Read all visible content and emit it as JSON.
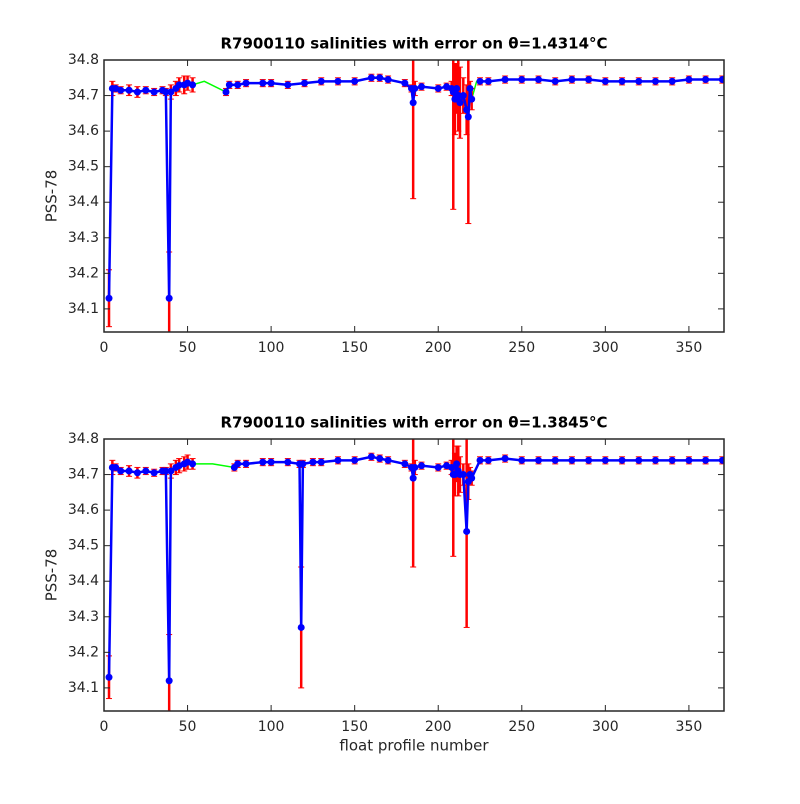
{
  "chart_data": [
    {
      "type": "line",
      "title": "R7900110 salinities with error on θ=1.4314°C",
      "ylabel": "PSS-78",
      "xlim": [
        0,
        371
      ],
      "ylim": [
        34.035,
        34.8
      ],
      "xticks": [
        0,
        50,
        100,
        150,
        200,
        250,
        300,
        350
      ],
      "yticks": [
        34.1,
        34.2,
        34.3,
        34.4,
        34.5,
        34.6,
        34.7,
        34.8
      ],
      "x": [
        3,
        5,
        7,
        10,
        15,
        20,
        25,
        30,
        35,
        37,
        39,
        40,
        43,
        45,
        48,
        50,
        53,
        60,
        73,
        75,
        80,
        85,
        95,
        100,
        110,
        120,
        130,
        140,
        150,
        160,
        165,
        170,
        180,
        184,
        185,
        186,
        190,
        200,
        205,
        208,
        209,
        210,
        211,
        212,
        213,
        215,
        217,
        218,
        219,
        220,
        223,
        225,
        230,
        240,
        250,
        260,
        270,
        280,
        290,
        300,
        310,
        320,
        330,
        340,
        350,
        360,
        370
      ],
      "series": [
        {
          "color": "#00ff00",
          "values": [
            34.13,
            34.72,
            34.72,
            34.715,
            34.715,
            34.71,
            34.715,
            34.71,
            34.715,
            34.71,
            34.13,
            34.71,
            34.72,
            34.73,
            34.73,
            34.735,
            34.73,
            34.74,
            34.71,
            34.73,
            34.73,
            34.735,
            34.735,
            34.735,
            34.73,
            34.735,
            34.74,
            34.74,
            34.74,
            34.75,
            34.75,
            34.745,
            34.735,
            34.72,
            34.68,
            34.72,
            34.725,
            34.72,
            34.725,
            34.72,
            34.71,
            34.69,
            34.72,
            34.7,
            34.68,
            34.7,
            34.66,
            34.64,
            34.72,
            34.69,
            34.74,
            34.74,
            34.74,
            34.745,
            34.745,
            34.745,
            34.74,
            34.745,
            34.745,
            34.74,
            34.74,
            34.74,
            34.74,
            34.74,
            34.745,
            34.745,
            34.745
          ]
        },
        {
          "color": "#0000ff",
          "error_color": "#ff0000",
          "values": [
            34.13,
            34.72,
            34.72,
            34.715,
            34.715,
            34.71,
            34.715,
            34.71,
            34.715,
            34.71,
            34.13,
            34.71,
            34.72,
            34.73,
            34.73,
            34.735,
            34.73,
            null,
            34.71,
            34.73,
            34.73,
            34.735,
            34.735,
            34.735,
            34.73,
            34.735,
            34.74,
            34.74,
            34.74,
            34.75,
            34.75,
            34.745,
            34.735,
            34.72,
            34.68,
            34.72,
            34.725,
            34.72,
            34.725,
            34.72,
            34.71,
            34.69,
            34.72,
            34.7,
            34.68,
            34.7,
            34.66,
            34.64,
            34.72,
            34.69,
            null,
            34.74,
            34.74,
            34.745,
            34.745,
            34.745,
            34.74,
            34.745,
            34.745,
            34.74,
            34.74,
            34.74,
            34.74,
            34.74,
            34.745,
            34.745,
            34.745
          ],
          "errors": [
            0.08,
            0.02,
            0.01,
            0.01,
            0.015,
            0.015,
            0.01,
            0.01,
            0.01,
            0.01,
            0.13,
            0.02,
            0.02,
            0.02,
            0.025,
            0.02,
            0.02,
            null,
            0.01,
            0.01,
            0.01,
            0.01,
            0.01,
            0.01,
            0.01,
            0.01,
            0.01,
            0.01,
            0.01,
            0.01,
            0.01,
            0.01,
            0.01,
            0.01,
            0.27,
            0.02,
            0.01,
            0.01,
            0.01,
            0.02,
            0.33,
            0.1,
            0.07,
            0.1,
            0.1,
            0.05,
            0.07,
            0.3,
            0.02,
            0.03,
            null,
            0.01,
            0.01,
            0.01,
            0.01,
            0.01,
            0.01,
            0.01,
            0.01,
            0.01,
            0.01,
            0.01,
            0.01,
            0.01,
            0.01,
            0.01,
            0.01
          ]
        }
      ]
    },
    {
      "type": "line",
      "title": "R7900110 salinities with error on θ=1.3845°C",
      "ylabel": "PSS-78",
      "xlabel": "float profile number",
      "xlim": [
        0,
        371
      ],
      "ylim": [
        34.035,
        34.8
      ],
      "xticks": [
        0,
        50,
        100,
        150,
        200,
        250,
        300,
        350
      ],
      "yticks": [
        34.1,
        34.2,
        34.3,
        34.4,
        34.5,
        34.6,
        34.7,
        34.8
      ],
      "x": [
        3,
        5,
        7,
        10,
        15,
        20,
        25,
        30,
        35,
        37,
        39,
        40,
        43,
        45,
        48,
        50,
        53,
        65,
        78,
        80,
        85,
        95,
        100,
        110,
        117,
        118,
        119,
        125,
        130,
        140,
        150,
        160,
        165,
        170,
        180,
        184,
        185,
        186,
        190,
        200,
        205,
        208,
        209,
        210,
        211,
        212,
        213,
        215,
        217,
        218,
        219,
        220,
        225,
        230,
        240,
        250,
        260,
        270,
        280,
        290,
        300,
        310,
        320,
        330,
        340,
        350,
        360,
        370
      ],
      "series": [
        {
          "color": "#00ff00",
          "values": [
            34.13,
            34.72,
            34.72,
            34.71,
            34.71,
            34.705,
            34.71,
            34.705,
            34.71,
            34.71,
            34.12,
            34.71,
            34.72,
            34.725,
            34.73,
            34.735,
            34.73,
            34.73,
            34.72,
            34.73,
            34.73,
            34.735,
            34.735,
            34.735,
            34.73,
            34.27,
            34.73,
            34.735,
            34.735,
            34.74,
            34.74,
            34.75,
            34.745,
            34.74,
            34.73,
            34.72,
            34.69,
            34.72,
            34.725,
            34.72,
            34.725,
            34.72,
            34.7,
            34.7,
            34.73,
            34.71,
            34.7,
            34.7,
            34.54,
            34.68,
            34.7,
            34.69,
            34.74,
            34.74,
            34.745,
            34.74,
            34.74,
            34.74,
            34.74,
            34.74,
            34.74,
            34.74,
            34.74,
            34.74,
            34.74,
            34.74,
            34.74,
            34.74
          ]
        },
        {
          "color": "#0000ff",
          "error_color": "#ff0000",
          "values": [
            34.13,
            34.72,
            34.72,
            34.71,
            34.71,
            34.705,
            34.71,
            34.705,
            34.71,
            34.71,
            34.12,
            34.71,
            34.72,
            34.725,
            34.73,
            34.735,
            34.73,
            null,
            34.72,
            34.73,
            34.73,
            34.735,
            34.735,
            34.735,
            34.73,
            34.27,
            34.73,
            34.735,
            34.735,
            34.74,
            34.74,
            34.75,
            34.745,
            34.74,
            34.73,
            34.72,
            34.69,
            34.72,
            34.725,
            34.72,
            34.725,
            34.72,
            34.7,
            34.7,
            34.73,
            34.71,
            34.7,
            34.7,
            34.54,
            34.68,
            34.7,
            34.69,
            34.74,
            34.74,
            34.745,
            34.74,
            34.74,
            34.74,
            34.74,
            34.74,
            34.74,
            34.74,
            34.74,
            34.74,
            34.74,
            34.74,
            34.74,
            34.74
          ],
          "errors": [
            0.06,
            0.02,
            0.01,
            0.01,
            0.015,
            0.015,
            0.01,
            0.01,
            0.01,
            0.01,
            0.13,
            0.02,
            0.02,
            0.02,
            0.02,
            0.02,
            0.015,
            null,
            0.01,
            0.01,
            0.01,
            0.01,
            0.01,
            0.01,
            0.01,
            0.17,
            0.01,
            0.01,
            0.01,
            0.01,
            0.01,
            0.01,
            0.01,
            0.01,
            0.01,
            0.01,
            0.25,
            0.02,
            0.01,
            0.01,
            0.01,
            0.02,
            0.23,
            0.06,
            0.05,
            0.07,
            0.05,
            0.03,
            0.27,
            0.05,
            0.02,
            0.02,
            0.01,
            0.01,
            0.01,
            0.01,
            0.01,
            0.01,
            0.01,
            0.01,
            0.01,
            0.01,
            0.01,
            0.01,
            0.01,
            0.01,
            0.01,
            0.01
          ]
        }
      ]
    }
  ]
}
